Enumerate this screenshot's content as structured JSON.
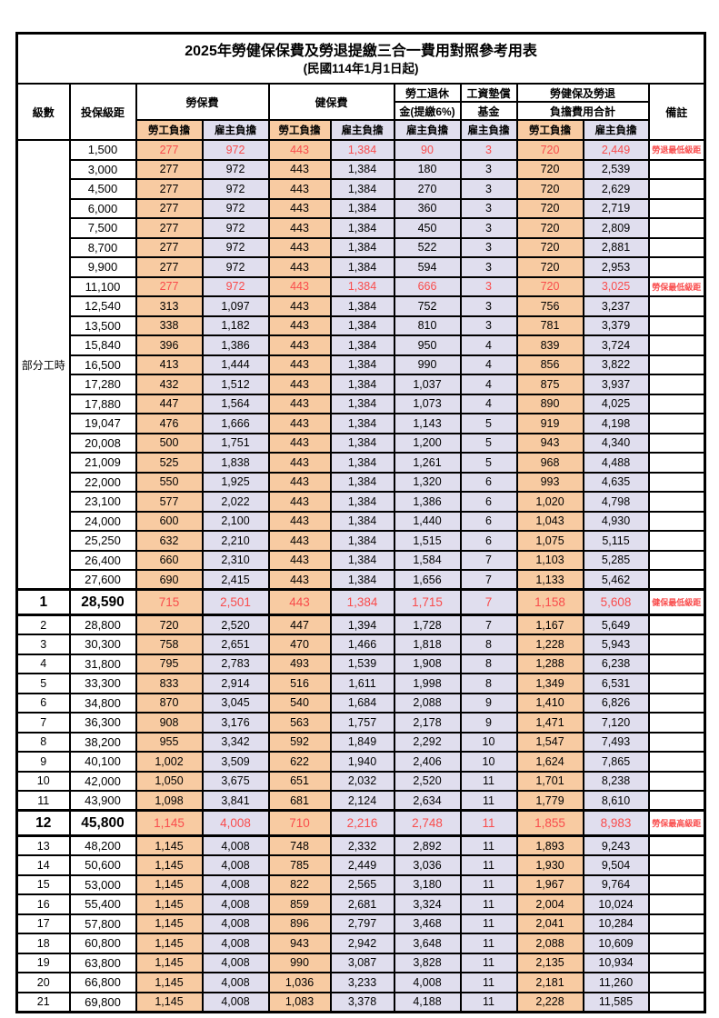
{
  "title": "2025年勞健保保費及勞退提繳三合一費用對照參考用表",
  "subtitle": "(民國114年1月1日起)",
  "header": {
    "level": "級數",
    "bracket": "投保級距",
    "labor_fee": "勞保費",
    "health_fee": "健保費",
    "pension_line1": "勞工退休",
    "pension_line2": "金(提繳6%)",
    "wage_fund_line1": "工資墊償",
    "wage_fund_line2": "基金",
    "total_line1": "勞健保及勞退",
    "total_line2": "負擔費用合計",
    "remark": "備註",
    "employee_share": "勞工負擔",
    "employer_share": "雇主負擔"
  },
  "part_time_label": "部分工時",
  "colors": {
    "employee_bg": "#F8CBA2",
    "employer_bg": "#E0DEEE",
    "highlight_text": "#F94C4C"
  },
  "rows": [
    {
      "level": "",
      "bracket": "1,500",
      "labor_emp": "277",
      "labor_er": "972",
      "health_emp": "443",
      "health_er": "1,384",
      "pension_er": "90",
      "wage_fund_er": "3",
      "total_emp": "720",
      "total_er": "2,449",
      "remark": "勞退最低級距",
      "highlight": true,
      "emphasis": false
    },
    {
      "level": "",
      "bracket": "3,000",
      "labor_emp": "277",
      "labor_er": "972",
      "health_emp": "443",
      "health_er": "1,384",
      "pension_er": "180",
      "wage_fund_er": "3",
      "total_emp": "720",
      "total_er": "2,539",
      "remark": "",
      "highlight": false,
      "emphasis": false
    },
    {
      "level": "",
      "bracket": "4,500",
      "labor_emp": "277",
      "labor_er": "972",
      "health_emp": "443",
      "health_er": "1,384",
      "pension_er": "270",
      "wage_fund_er": "3",
      "total_emp": "720",
      "total_er": "2,629",
      "remark": "",
      "highlight": false,
      "emphasis": false
    },
    {
      "level": "",
      "bracket": "6,000",
      "labor_emp": "277",
      "labor_er": "972",
      "health_emp": "443",
      "health_er": "1,384",
      "pension_er": "360",
      "wage_fund_er": "3",
      "total_emp": "720",
      "total_er": "2,719",
      "remark": "",
      "highlight": false,
      "emphasis": false
    },
    {
      "level": "",
      "bracket": "7,500",
      "labor_emp": "277",
      "labor_er": "972",
      "health_emp": "443",
      "health_er": "1,384",
      "pension_er": "450",
      "wage_fund_er": "3",
      "total_emp": "720",
      "total_er": "2,809",
      "remark": "",
      "highlight": false,
      "emphasis": false
    },
    {
      "level": "",
      "bracket": "8,700",
      "labor_emp": "277",
      "labor_er": "972",
      "health_emp": "443",
      "health_er": "1,384",
      "pension_er": "522",
      "wage_fund_er": "3",
      "total_emp": "720",
      "total_er": "2,881",
      "remark": "",
      "highlight": false,
      "emphasis": false
    },
    {
      "level": "",
      "bracket": "9,900",
      "labor_emp": "277",
      "labor_er": "972",
      "health_emp": "443",
      "health_er": "1,384",
      "pension_er": "594",
      "wage_fund_er": "3",
      "total_emp": "720",
      "total_er": "2,953",
      "remark": "",
      "highlight": false,
      "emphasis": false
    },
    {
      "level": "",
      "bracket": "11,100",
      "labor_emp": "277",
      "labor_er": "972",
      "health_emp": "443",
      "health_er": "1,384",
      "pension_er": "666",
      "wage_fund_er": "3",
      "total_emp": "720",
      "total_er": "3,025",
      "remark": "勞保最低級距",
      "highlight": true,
      "emphasis": false
    },
    {
      "level": "",
      "bracket": "12,540",
      "labor_emp": "313",
      "labor_er": "1,097",
      "health_emp": "443",
      "health_er": "1,384",
      "pension_er": "752",
      "wage_fund_er": "3",
      "total_emp": "756",
      "total_er": "3,237",
      "remark": "",
      "highlight": false,
      "emphasis": false
    },
    {
      "level": "",
      "bracket": "13,500",
      "labor_emp": "338",
      "labor_er": "1,182",
      "health_emp": "443",
      "health_er": "1,384",
      "pension_er": "810",
      "wage_fund_er": "3",
      "total_emp": "781",
      "total_er": "3,379",
      "remark": "",
      "highlight": false,
      "emphasis": false
    },
    {
      "level": "",
      "bracket": "15,840",
      "labor_emp": "396",
      "labor_er": "1,386",
      "health_emp": "443",
      "health_er": "1,384",
      "pension_er": "950",
      "wage_fund_er": "4",
      "total_emp": "839",
      "total_er": "3,724",
      "remark": "",
      "highlight": false,
      "emphasis": false
    },
    {
      "level": "",
      "bracket": "16,500",
      "labor_emp": "413",
      "labor_er": "1,444",
      "health_emp": "443",
      "health_er": "1,384",
      "pension_er": "990",
      "wage_fund_er": "4",
      "total_emp": "856",
      "total_er": "3,822",
      "remark": "",
      "highlight": false,
      "emphasis": false
    },
    {
      "level": "",
      "bracket": "17,280",
      "labor_emp": "432",
      "labor_er": "1,512",
      "health_emp": "443",
      "health_er": "1,384",
      "pension_er": "1,037",
      "wage_fund_er": "4",
      "total_emp": "875",
      "total_er": "3,937",
      "remark": "",
      "highlight": false,
      "emphasis": false
    },
    {
      "level": "",
      "bracket": "17,880",
      "labor_emp": "447",
      "labor_er": "1,564",
      "health_emp": "443",
      "health_er": "1,384",
      "pension_er": "1,073",
      "wage_fund_er": "4",
      "total_emp": "890",
      "total_er": "4,025",
      "remark": "",
      "highlight": false,
      "emphasis": false
    },
    {
      "level": "",
      "bracket": "19,047",
      "labor_emp": "476",
      "labor_er": "1,666",
      "health_emp": "443",
      "health_er": "1,384",
      "pension_er": "1,143",
      "wage_fund_er": "5",
      "total_emp": "919",
      "total_er": "4,198",
      "remark": "",
      "highlight": false,
      "emphasis": false
    },
    {
      "level": "",
      "bracket": "20,008",
      "labor_emp": "500",
      "labor_er": "1,751",
      "health_emp": "443",
      "health_er": "1,384",
      "pension_er": "1,200",
      "wage_fund_er": "5",
      "total_emp": "943",
      "total_er": "4,340",
      "remark": "",
      "highlight": false,
      "emphasis": false
    },
    {
      "level": "",
      "bracket": "21,009",
      "labor_emp": "525",
      "labor_er": "1,838",
      "health_emp": "443",
      "health_er": "1,384",
      "pension_er": "1,261",
      "wage_fund_er": "5",
      "total_emp": "968",
      "total_er": "4,488",
      "remark": "",
      "highlight": false,
      "emphasis": false
    },
    {
      "level": "",
      "bracket": "22,000",
      "labor_emp": "550",
      "labor_er": "1,925",
      "health_emp": "443",
      "health_er": "1,384",
      "pension_er": "1,320",
      "wage_fund_er": "6",
      "total_emp": "993",
      "total_er": "4,635",
      "remark": "",
      "highlight": false,
      "emphasis": false
    },
    {
      "level": "",
      "bracket": "23,100",
      "labor_emp": "577",
      "labor_er": "2,022",
      "health_emp": "443",
      "health_er": "1,384",
      "pension_er": "1,386",
      "wage_fund_er": "6",
      "total_emp": "1,020",
      "total_er": "4,798",
      "remark": "",
      "highlight": false,
      "emphasis": false
    },
    {
      "level": "",
      "bracket": "24,000",
      "labor_emp": "600",
      "labor_er": "2,100",
      "health_emp": "443",
      "health_er": "1,384",
      "pension_er": "1,440",
      "wage_fund_er": "6",
      "total_emp": "1,043",
      "total_er": "4,930",
      "remark": "",
      "highlight": false,
      "emphasis": false
    },
    {
      "level": "",
      "bracket": "25,250",
      "labor_emp": "632",
      "labor_er": "2,210",
      "health_emp": "443",
      "health_er": "1,384",
      "pension_er": "1,515",
      "wage_fund_er": "6",
      "total_emp": "1,075",
      "total_er": "5,115",
      "remark": "",
      "highlight": false,
      "emphasis": false
    },
    {
      "level": "",
      "bracket": "26,400",
      "labor_emp": "660",
      "labor_er": "2,310",
      "health_emp": "443",
      "health_er": "1,384",
      "pension_er": "1,584",
      "wage_fund_er": "7",
      "total_emp": "1,103",
      "total_er": "5,285",
      "remark": "",
      "highlight": false,
      "emphasis": false
    },
    {
      "level": "",
      "bracket": "27,600",
      "labor_emp": "690",
      "labor_er": "2,415",
      "health_emp": "443",
      "health_er": "1,384",
      "pension_er": "1,656",
      "wage_fund_er": "7",
      "total_emp": "1,133",
      "total_er": "5,462",
      "remark": "",
      "highlight": false,
      "emphasis": false
    },
    {
      "level": "1",
      "bracket": "28,590",
      "labor_emp": "715",
      "labor_er": "2,501",
      "health_emp": "443",
      "health_er": "1,384",
      "pension_er": "1,715",
      "wage_fund_er": "7",
      "total_emp": "1,158",
      "total_er": "5,608",
      "remark": "健保最低級距",
      "highlight": true,
      "emphasis": true
    },
    {
      "level": "2",
      "bracket": "28,800",
      "labor_emp": "720",
      "labor_er": "2,520",
      "health_emp": "447",
      "health_er": "1,394",
      "pension_er": "1,728",
      "wage_fund_er": "7",
      "total_emp": "1,167",
      "total_er": "5,649",
      "remark": "",
      "highlight": false,
      "emphasis": false
    },
    {
      "level": "3",
      "bracket": "30,300",
      "labor_emp": "758",
      "labor_er": "2,651",
      "health_emp": "470",
      "health_er": "1,466",
      "pension_er": "1,818",
      "wage_fund_er": "8",
      "total_emp": "1,228",
      "total_er": "5,943",
      "remark": "",
      "highlight": false,
      "emphasis": false
    },
    {
      "level": "4",
      "bracket": "31,800",
      "labor_emp": "795",
      "labor_er": "2,783",
      "health_emp": "493",
      "health_er": "1,539",
      "pension_er": "1,908",
      "wage_fund_er": "8",
      "total_emp": "1,288",
      "total_er": "6,238",
      "remark": "",
      "highlight": false,
      "emphasis": false
    },
    {
      "level": "5",
      "bracket": "33,300",
      "labor_emp": "833",
      "labor_er": "2,914",
      "health_emp": "516",
      "health_er": "1,611",
      "pension_er": "1,998",
      "wage_fund_er": "8",
      "total_emp": "1,349",
      "total_er": "6,531",
      "remark": "",
      "highlight": false,
      "emphasis": false
    },
    {
      "level": "6",
      "bracket": "34,800",
      "labor_emp": "870",
      "labor_er": "3,045",
      "health_emp": "540",
      "health_er": "1,684",
      "pension_er": "2,088",
      "wage_fund_er": "9",
      "total_emp": "1,410",
      "total_er": "6,826",
      "remark": "",
      "highlight": false,
      "emphasis": false
    },
    {
      "level": "7",
      "bracket": "36,300",
      "labor_emp": "908",
      "labor_er": "3,176",
      "health_emp": "563",
      "health_er": "1,757",
      "pension_er": "2,178",
      "wage_fund_er": "9",
      "total_emp": "1,471",
      "total_er": "7,120",
      "remark": "",
      "highlight": false,
      "emphasis": false
    },
    {
      "level": "8",
      "bracket": "38,200",
      "labor_emp": "955",
      "labor_er": "3,342",
      "health_emp": "592",
      "health_er": "1,849",
      "pension_er": "2,292",
      "wage_fund_er": "10",
      "total_emp": "1,547",
      "total_er": "7,493",
      "remark": "",
      "highlight": false,
      "emphasis": false
    },
    {
      "level": "9",
      "bracket": "40,100",
      "labor_emp": "1,002",
      "labor_er": "3,509",
      "health_emp": "622",
      "health_er": "1,940",
      "pension_er": "2,406",
      "wage_fund_er": "10",
      "total_emp": "1,624",
      "total_er": "7,865",
      "remark": "",
      "highlight": false,
      "emphasis": false
    },
    {
      "level": "10",
      "bracket": "42,000",
      "labor_emp": "1,050",
      "labor_er": "3,675",
      "health_emp": "651",
      "health_er": "2,032",
      "pension_er": "2,520",
      "wage_fund_er": "11",
      "total_emp": "1,701",
      "total_er": "8,238",
      "remark": "",
      "highlight": false,
      "emphasis": false
    },
    {
      "level": "11",
      "bracket": "43,900",
      "labor_emp": "1,098",
      "labor_er": "3,841",
      "health_emp": "681",
      "health_er": "2,124",
      "pension_er": "2,634",
      "wage_fund_er": "11",
      "total_emp": "1,779",
      "total_er": "8,610",
      "remark": "",
      "highlight": false,
      "emphasis": false
    },
    {
      "level": "12",
      "bracket": "45,800",
      "labor_emp": "1,145",
      "labor_er": "4,008",
      "health_emp": "710",
      "health_er": "2,216",
      "pension_er": "2,748",
      "wage_fund_er": "11",
      "total_emp": "1,855",
      "total_er": "8,983",
      "remark": "勞保最高級距",
      "highlight": true,
      "emphasis": true
    },
    {
      "level": "13",
      "bracket": "48,200",
      "labor_emp": "1,145",
      "labor_er": "4,008",
      "health_emp": "748",
      "health_er": "2,332",
      "pension_er": "2,892",
      "wage_fund_er": "11",
      "total_emp": "1,893",
      "total_er": "9,243",
      "remark": "",
      "highlight": false,
      "emphasis": false
    },
    {
      "level": "14",
      "bracket": "50,600",
      "labor_emp": "1,145",
      "labor_er": "4,008",
      "health_emp": "785",
      "health_er": "2,449",
      "pension_er": "3,036",
      "wage_fund_er": "11",
      "total_emp": "1,930",
      "total_er": "9,504",
      "remark": "",
      "highlight": false,
      "emphasis": false
    },
    {
      "level": "15",
      "bracket": "53,000",
      "labor_emp": "1,145",
      "labor_er": "4,008",
      "health_emp": "822",
      "health_er": "2,565",
      "pension_er": "3,180",
      "wage_fund_er": "11",
      "total_emp": "1,967",
      "total_er": "9,764",
      "remark": "",
      "highlight": false,
      "emphasis": false
    },
    {
      "level": "16",
      "bracket": "55,400",
      "labor_emp": "1,145",
      "labor_er": "4,008",
      "health_emp": "859",
      "health_er": "2,681",
      "pension_er": "3,324",
      "wage_fund_er": "11",
      "total_emp": "2,004",
      "total_er": "10,024",
      "remark": "",
      "highlight": false,
      "emphasis": false
    },
    {
      "level": "17",
      "bracket": "57,800",
      "labor_emp": "1,145",
      "labor_er": "4,008",
      "health_emp": "896",
      "health_er": "2,797",
      "pension_er": "3,468",
      "wage_fund_er": "11",
      "total_emp": "2,041",
      "total_er": "10,284",
      "remark": "",
      "highlight": false,
      "emphasis": false
    },
    {
      "level": "18",
      "bracket": "60,800",
      "labor_emp": "1,145",
      "labor_er": "4,008",
      "health_emp": "943",
      "health_er": "2,942",
      "pension_er": "3,648",
      "wage_fund_er": "11",
      "total_emp": "2,088",
      "total_er": "10,609",
      "remark": "",
      "highlight": false,
      "emphasis": false
    },
    {
      "level": "19",
      "bracket": "63,800",
      "labor_emp": "1,145",
      "labor_er": "4,008",
      "health_emp": "990",
      "health_er": "3,087",
      "pension_er": "3,828",
      "wage_fund_er": "11",
      "total_emp": "2,135",
      "total_er": "10,934",
      "remark": "",
      "highlight": false,
      "emphasis": false
    },
    {
      "level": "20",
      "bracket": "66,800",
      "labor_emp": "1,145",
      "labor_er": "4,008",
      "health_emp": "1,036",
      "health_er": "3,233",
      "pension_er": "4,008",
      "wage_fund_er": "11",
      "total_emp": "2,181",
      "total_er": "11,260",
      "remark": "",
      "highlight": false,
      "emphasis": false
    },
    {
      "level": "21",
      "bracket": "69,800",
      "labor_emp": "1,145",
      "labor_er": "4,008",
      "health_emp": "1,083",
      "health_er": "3,378",
      "pension_er": "4,188",
      "wage_fund_er": "11",
      "total_emp": "2,228",
      "total_er": "11,585",
      "remark": "",
      "highlight": false,
      "emphasis": false
    }
  ]
}
